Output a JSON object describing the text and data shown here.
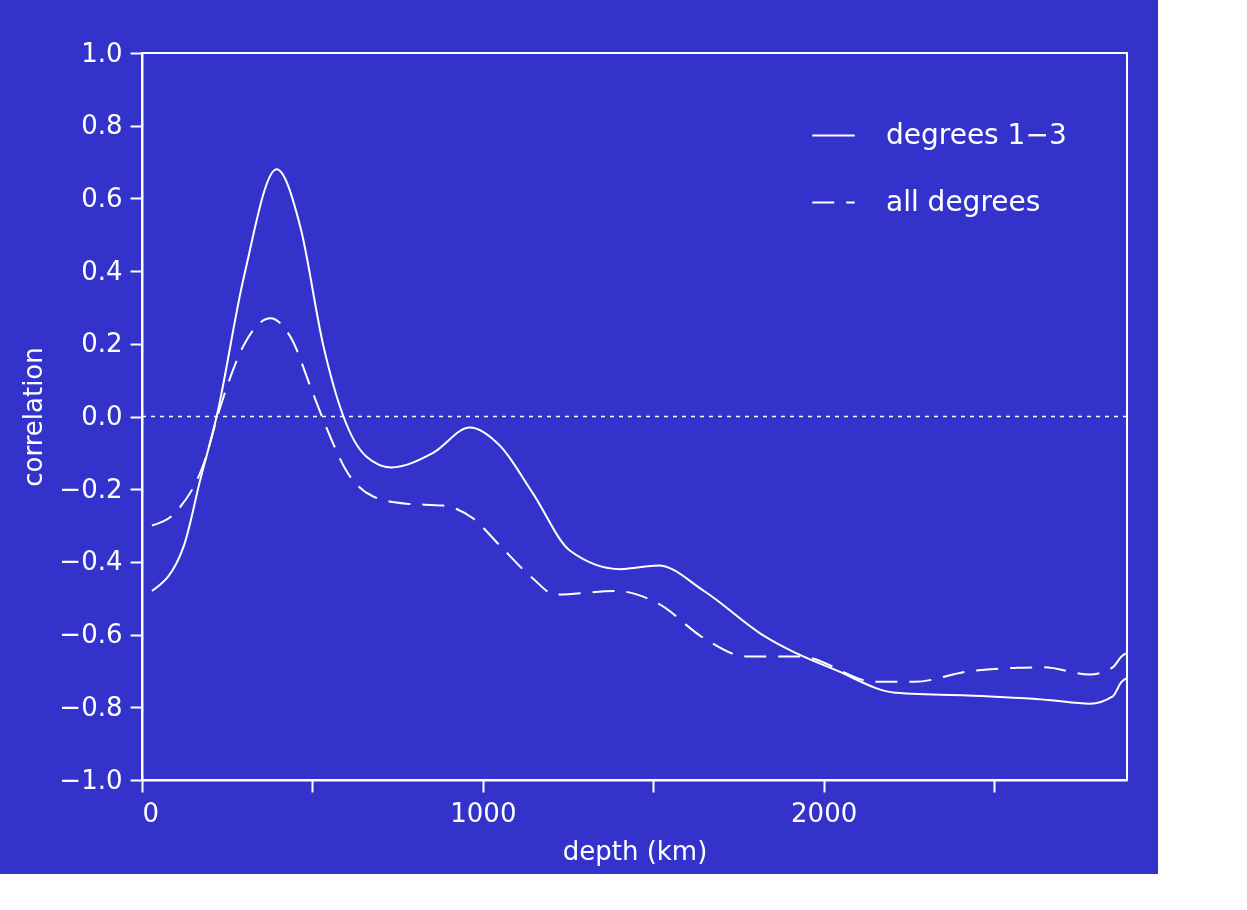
{
  "chart_data": {
    "type": "line",
    "xlabel": "depth (km)",
    "ylabel": "correlation",
    "xlim": [
      0,
      2890
    ],
    "xticks": [
      0,
      {
        "value": 500,
        "label": null
      },
      1000,
      {
        "value": 1500,
        "label": null
      },
      2000,
      {
        "value": 2500,
        "label": null
      }
    ],
    "ylim": [
      -1.0,
      1.0
    ],
    "yticks": [
      {
        "value": -1.0,
        "label": "−1.0"
      },
      {
        "value": -0.8,
        "label": "−0.8"
      },
      {
        "value": -0.6,
        "label": "−0.6"
      },
      {
        "value": -0.4,
        "label": "−0.4"
      },
      {
        "value": -0.2,
        "label": "−0.2"
      },
      {
        "value": 0.0,
        "label": "0.0"
      },
      {
        "value": 0.2,
        "label": "0.2"
      },
      {
        "value": 0.4,
        "label": "0.4"
      },
      {
        "value": 0.6,
        "label": "0.6"
      },
      {
        "value": 0.8,
        "label": "0.8"
      },
      {
        "value": 1.0,
        "label": "1.0"
      }
    ],
    "grid": false,
    "legend": "top right",
    "marker": "none",
    "ref_lines": [
      {
        "axis": "y",
        "value": 0,
        "label": null,
        "color": "#ffffff",
        "line_style": "dotted"
      }
    ],
    "series": [
      {
        "name": "degrees 1−3",
        "color": "#ffffff",
        "line_style": "solid",
        "x": [
          29,
          123,
          172,
          219,
          298,
          395,
          465,
          532,
          591,
          658,
          731,
          854,
          962,
          1050,
          1146,
          1257,
          1404,
          1515,
          1649,
          1819,
          2041,
          2211,
          2488,
          2658,
          2781,
          2848,
          2874,
          2890
        ],
        "values": [
          -0.48,
          -0.355,
          -0.17,
          0.0,
          0.38,
          0.68,
          0.52,
          0.195,
          0.0,
          -0.11,
          -0.14,
          -0.1,
          -0.03,
          -0.08,
          -0.21,
          -0.37,
          -0.42,
          -0.41,
          -0.48,
          -0.6,
          -0.7,
          -0.76,
          -0.77,
          -0.78,
          -0.79,
          -0.77,
          -0.73,
          -0.72
        ]
      },
      {
        "name": "all degrees",
        "color": "#ffffff",
        "line_style": "dashed",
        "x": [
          29,
          102,
          181,
          231,
          298,
          377,
          435,
          503,
          541,
          600,
          678,
          775,
          883,
          971,
          1050,
          1146,
          1213,
          1392,
          1515,
          1649,
          1772,
          1930,
          2152,
          2266,
          2433,
          2646,
          2781,
          2848,
          2874,
          2890
        ],
        "values": [
          -0.3,
          -0.26,
          -0.13,
          0.03,
          0.195,
          0.27,
          0.22,
          0.06,
          -0.03,
          -0.15,
          -0.22,
          -0.24,
          -0.245,
          -0.28,
          -0.355,
          -0.445,
          -0.49,
          -0.48,
          -0.515,
          -0.61,
          -0.66,
          -0.66,
          -0.73,
          -0.73,
          -0.7,
          -0.69,
          -0.71,
          -0.69,
          -0.66,
          -0.65
        ]
      }
    ]
  }
}
